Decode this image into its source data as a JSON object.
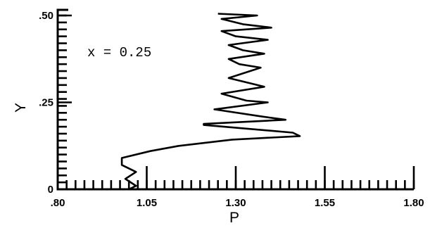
{
  "chart_data": {
    "type": "line",
    "title": "",
    "xlabel": "P",
    "ylabel": "Y",
    "annotation": "x = 0.25",
    "xlim": [
      0.8,
      1.8
    ],
    "ylim": [
      0,
      0.5
    ],
    "x_ticks": [
      {
        "value": 0.8,
        "label": ".80"
      },
      {
        "value": 1.05,
        "label": "1.05"
      },
      {
        "value": 1.3,
        "label": "1.30"
      },
      {
        "value": 1.55,
        "label": "1.55"
      },
      {
        "value": 1.8,
        "label": "1.80"
      }
    ],
    "y_ticks": [
      {
        "value": 0,
        "label": "0"
      },
      {
        "value": 0.25,
        "label": ".25"
      },
      {
        "value": 0.5,
        "label": ".50"
      }
    ],
    "x_minor_step": 0.025,
    "y_minor_step": 0.02,
    "grid": false,
    "series": [
      {
        "color": "#000000",
        "points": [
          [
            1.0,
            0.0
          ],
          [
            1.02,
            0.01
          ],
          [
            0.99,
            0.03
          ],
          [
            1.02,
            0.05
          ],
          [
            0.98,
            0.07
          ],
          [
            0.98,
            0.09
          ],
          [
            1.06,
            0.11
          ],
          [
            1.14,
            0.125
          ],
          [
            1.29,
            0.143
          ],
          [
            1.48,
            0.153
          ],
          [
            1.46,
            0.163
          ],
          [
            1.21,
            0.185
          ],
          [
            1.21,
            0.188
          ],
          [
            1.44,
            0.2
          ],
          [
            1.37,
            0.21
          ],
          [
            1.24,
            0.23
          ],
          [
            1.39,
            0.25
          ],
          [
            1.33,
            0.255
          ],
          [
            1.26,
            0.275
          ],
          [
            1.38,
            0.295
          ],
          [
            1.34,
            0.305
          ],
          [
            1.28,
            0.32
          ],
          [
            1.37,
            0.35
          ],
          [
            1.31,
            0.36
          ],
          [
            1.28,
            0.375
          ],
          [
            1.38,
            0.39
          ],
          [
            1.32,
            0.4
          ],
          [
            1.28,
            0.415
          ],
          [
            1.39,
            0.43
          ],
          [
            1.3,
            0.44
          ],
          [
            1.26,
            0.455
          ],
          [
            1.4,
            0.465
          ],
          [
            1.32,
            0.475
          ],
          [
            1.26,
            0.49
          ],
          [
            1.36,
            0.5
          ],
          [
            1.25,
            0.505
          ]
        ]
      }
    ]
  }
}
